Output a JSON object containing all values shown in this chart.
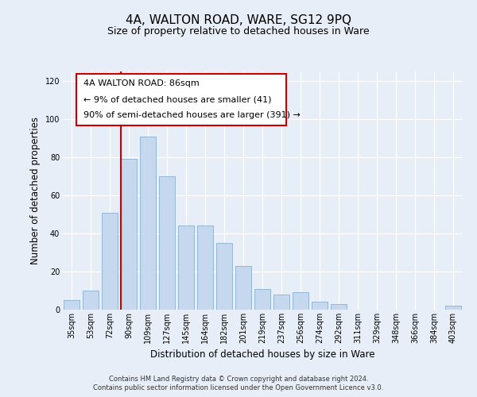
{
  "title": "4A, WALTON ROAD, WARE, SG12 9PQ",
  "subtitle": "Size of property relative to detached houses in Ware",
  "xlabel": "Distribution of detached houses by size in Ware",
  "ylabel": "Number of detached properties",
  "categories": [
    "35sqm",
    "53sqm",
    "72sqm",
    "90sqm",
    "109sqm",
    "127sqm",
    "145sqm",
    "164sqm",
    "182sqm",
    "201sqm",
    "219sqm",
    "237sqm",
    "256sqm",
    "274sqm",
    "292sqm",
    "311sqm",
    "329sqm",
    "348sqm",
    "366sqm",
    "384sqm",
    "403sqm"
  ],
  "values": [
    5,
    10,
    51,
    79,
    91,
    70,
    44,
    44,
    35,
    23,
    11,
    8,
    9,
    4,
    3,
    0,
    0,
    0,
    0,
    0,
    2
  ],
  "bar_color": "#c5d8ed",
  "bar_edge_color": "#8ab0d0",
  "vline_x_index": 3,
  "vline_color": "#cc0000",
  "annotation_line1": "4A WALTON ROAD: 86sqm",
  "annotation_line2": "← 9% of detached houses are smaller (41)",
  "annotation_line3": "90% of semi-detached houses are larger (391) →",
  "ylim": [
    0,
    125
  ],
  "yticks": [
    0,
    20,
    40,
    60,
    80,
    100,
    120
  ],
  "footer_line1": "Contains HM Land Registry data © Crown copyright and database right 2024.",
  "footer_line2": "Contains public sector information licensed under the Open Government Licence v3.0.",
  "bg_color": "#e8eef8",
  "plot_bg_color": "#e8eef8",
  "title_fontsize": 11,
  "subtitle_fontsize": 9,
  "axis_label_fontsize": 8.5,
  "tick_fontsize": 7,
  "annotation_fontsize": 8,
  "footer_fontsize": 6
}
